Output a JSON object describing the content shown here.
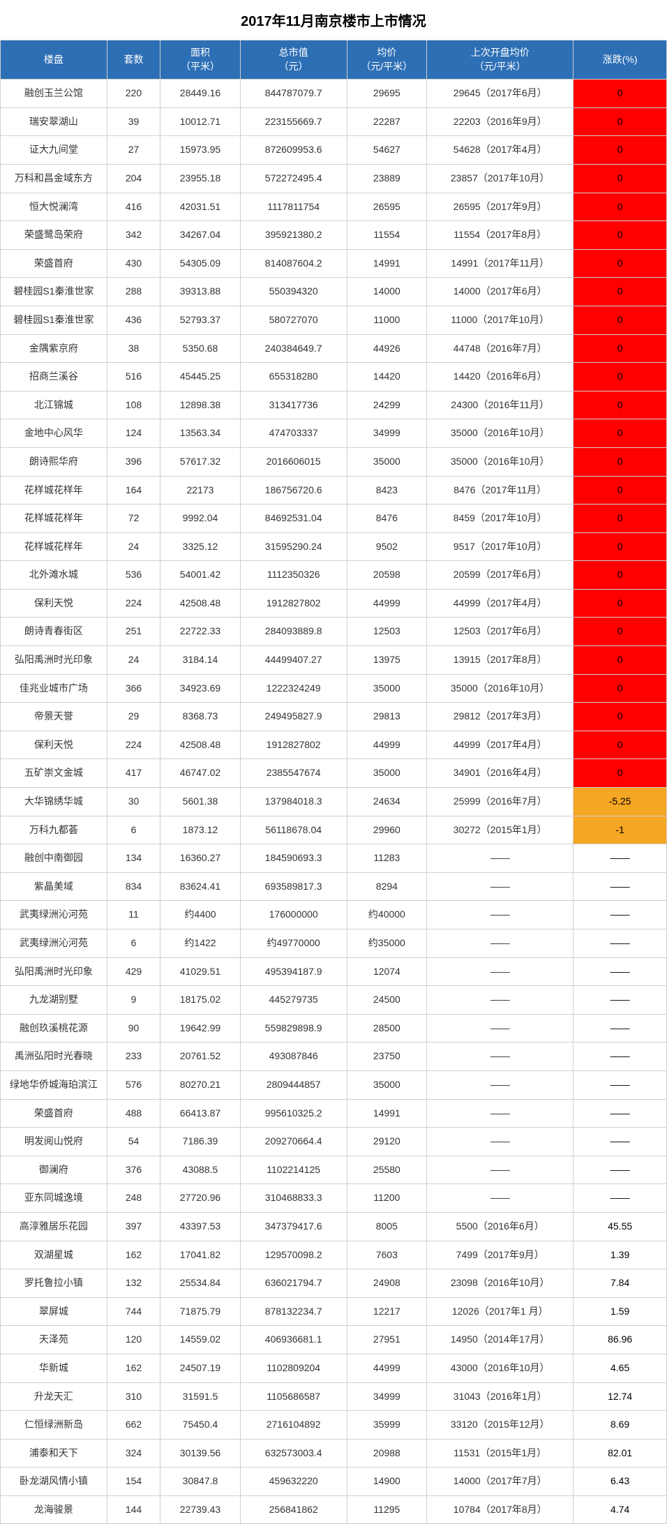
{
  "title": "2017年11月南京楼市上市情况",
  "styling": {
    "header_bg": "#2d6fb5",
    "header_color": "#ffffff",
    "border_color": "#d0d0d0",
    "title_fontsize": 20,
    "body_fontsize": 14,
    "change_colors": {
      "zero": "#ff0000",
      "negative": "#f5a623",
      "positive": "#ffffff",
      "none": "#ffffff"
    }
  },
  "columns": [
    "楼盘",
    "套数",
    "面积\n（平米）",
    "总市值\n（元）",
    "均价\n（元/平米）",
    "上次开盘均价\n（元/平米）",
    "涨跌(%)"
  ],
  "rows": [
    {
      "name": "融创玉兰公馆",
      "count": "220",
      "area": "28449.16",
      "total": "844787079.7",
      "avg": "29695",
      "last": "29645（2017年6月）",
      "change": "0",
      "change_kind": "zero"
    },
    {
      "name": "瑞安翠湖山",
      "count": "39",
      "area": "10012.71",
      "total": "223155669.7",
      "avg": "22287",
      "last": "22203（2016年9月）",
      "change": "0",
      "change_kind": "zero"
    },
    {
      "name": "证大九间堂",
      "count": "27",
      "area": "15973.95",
      "total": "872609953.6",
      "avg": "54627",
      "last": "54628（2017年4月）",
      "change": "0",
      "change_kind": "zero"
    },
    {
      "name": "万科和昌金域东方",
      "count": "204",
      "area": "23955.18",
      "total": "572272495.4",
      "avg": "23889",
      "last": "23857（2017年10月）",
      "change": "0",
      "change_kind": "zero"
    },
    {
      "name": "恒大悦澜湾",
      "count": "416",
      "area": "42031.51",
      "total": "1117811754",
      "avg": "26595",
      "last": "26595（2017年9月）",
      "change": "0",
      "change_kind": "zero"
    },
    {
      "name": "荣盛鹭岛荣府",
      "count": "342",
      "area": "34267.04",
      "total": "395921380.2",
      "avg": "11554",
      "last": "11554（2017年8月）",
      "change": "0",
      "change_kind": "zero"
    },
    {
      "name": "荣盛首府",
      "count": "430",
      "area": "54305.09",
      "total": "814087604.2",
      "avg": "14991",
      "last": "14991（2017年11月）",
      "change": "0",
      "change_kind": "zero"
    },
    {
      "name": "碧桂园S1秦淮世家",
      "count": "288",
      "area": "39313.88",
      "total": "550394320",
      "avg": "14000",
      "last": "14000（2017年6月）",
      "change": "0",
      "change_kind": "zero"
    },
    {
      "name": "碧桂园S1秦淮世家",
      "count": "436",
      "area": "52793.37",
      "total": "580727070",
      "avg": "11000",
      "last": "11000（2017年10月）",
      "change": "0",
      "change_kind": "zero"
    },
    {
      "name": "金隅紫京府",
      "count": "38",
      "area": "5350.68",
      "total": "240384649.7",
      "avg": "44926",
      "last": "44748（2016年7月）",
      "change": "0",
      "change_kind": "zero"
    },
    {
      "name": "招商兰溪谷",
      "count": "516",
      "area": "45445.25",
      "total": "655318280",
      "avg": "14420",
      "last": "14420（2016年6月）",
      "change": "0",
      "change_kind": "zero"
    },
    {
      "name": "北江锦城",
      "count": "108",
      "area": "12898.38",
      "total": "313417736",
      "avg": "24299",
      "last": "24300（2016年11月）",
      "change": "0",
      "change_kind": "zero"
    },
    {
      "name": "金地中心风华",
      "count": "124",
      "area": "13563.34",
      "total": "474703337",
      "avg": "34999",
      "last": "35000（2016年10月）",
      "change": "0",
      "change_kind": "zero"
    },
    {
      "name": "朗诗熙华府",
      "count": "396",
      "area": "57617.32",
      "total": "2016606015",
      "avg": "35000",
      "last": "35000（2016年10月）",
      "change": "0",
      "change_kind": "zero"
    },
    {
      "name": "花样城花样年",
      "count": "164",
      "area": "22173",
      "total": "186756720.6",
      "avg": "8423",
      "last": "8476（2017年11月）",
      "change": "0",
      "change_kind": "zero"
    },
    {
      "name": "花样城花样年",
      "count": "72",
      "area": "9992.04",
      "total": "84692531.04",
      "avg": "8476",
      "last": "8459（2017年10月）",
      "change": "0",
      "change_kind": "zero"
    },
    {
      "name": "花样城花样年",
      "count": "24",
      "area": "3325.12",
      "total": "31595290.24",
      "avg": "9502",
      "last": "9517（2017年10月）",
      "change": "0",
      "change_kind": "zero"
    },
    {
      "name": "北外滩水城",
      "count": "536",
      "area": "54001.42",
      "total": "1112350326",
      "avg": "20598",
      "last": "20599（2017年6月）",
      "change": "0",
      "change_kind": "zero"
    },
    {
      "name": "保利天悦",
      "count": "224",
      "area": "42508.48",
      "total": "1912827802",
      "avg": "44999",
      "last": "44999（2017年4月）",
      "change": "0",
      "change_kind": "zero"
    },
    {
      "name": "朗诗青春街区",
      "count": "251",
      "area": "22722.33",
      "total": "284093889.8",
      "avg": "12503",
      "last": "12503（2017年6月）",
      "change": "0",
      "change_kind": "zero"
    },
    {
      "name": "弘阳禹洲时光印象",
      "count": "24",
      "area": "3184.14",
      "total": "44499407.27",
      "avg": "13975",
      "last": "13915（2017年8月）",
      "change": "0",
      "change_kind": "zero"
    },
    {
      "name": "佳兆业城市广场",
      "count": "366",
      "area": "34923.69",
      "total": "1222324249",
      "avg": "35000",
      "last": "35000（2016年10月）",
      "change": "0",
      "change_kind": "zero"
    },
    {
      "name": "帝景天誉",
      "count": "29",
      "area": "8368.73",
      "total": "249495827.9",
      "avg": "29813",
      "last": "29812（2017年3月）",
      "change": "0",
      "change_kind": "zero"
    },
    {
      "name": "保利天悦",
      "count": "224",
      "area": "42508.48",
      "total": "1912827802",
      "avg": "44999",
      "last": "44999（2017年4月）",
      "change": "0",
      "change_kind": "zero"
    },
    {
      "name": "五矿崇文金城",
      "count": "417",
      "area": "46747.02",
      "total": "2385547674",
      "avg": "35000",
      "last": "34901（2016年4月）",
      "change": "0",
      "change_kind": "zero"
    },
    {
      "name": "大华锦绣华城",
      "count": "30",
      "area": "5601.38",
      "total": "137984018.3",
      "avg": "24634",
      "last": "25999（2016年7月）",
      "change": "-5.25",
      "change_kind": "negative"
    },
    {
      "name": "万科九都荟",
      "count": "6",
      "area": "1873.12",
      "total": "56118678.04",
      "avg": "29960",
      "last": "30272（2015年1月）",
      "change": "-1",
      "change_kind": "negative"
    },
    {
      "name": "融创中南御园",
      "count": "134",
      "area": "16360.27",
      "total": "184590693.3",
      "avg": "11283",
      "last": "——",
      "change": "——",
      "change_kind": "none"
    },
    {
      "name": "紫晶美域",
      "count": "834",
      "area": "83624.41",
      "total": "693589817.3",
      "avg": "8294",
      "last": "——",
      "change": "——",
      "change_kind": "none"
    },
    {
      "name": "武夷绿洲沁河苑",
      "count": "11",
      "area": "约4400",
      "total": "176000000",
      "avg": "约40000",
      "last": "——",
      "change": "——",
      "change_kind": "none"
    },
    {
      "name": "武夷绿洲沁河苑",
      "count": "6",
      "area": "约1422",
      "total": "约49770000",
      "avg": "约35000",
      "last": "——",
      "change": "——",
      "change_kind": "none"
    },
    {
      "name": "弘阳禹洲时光印象",
      "count": "429",
      "area": "41029.51",
      "total": "495394187.9",
      "avg": "12074",
      "last": "——",
      "change": "——",
      "change_kind": "none"
    },
    {
      "name": "九龙湖别墅",
      "count": "9",
      "area": "18175.02",
      "total": "445279735",
      "avg": "24500",
      "last": "——",
      "change": "——",
      "change_kind": "none"
    },
    {
      "name": "融创玖溪桃花源",
      "count": "90",
      "area": "19642.99",
      "total": "559829898.9",
      "avg": "28500",
      "last": "——",
      "change": "——",
      "change_kind": "none"
    },
    {
      "name": "禹洲弘阳时光春晓",
      "count": "233",
      "area": "20761.52",
      "total": "493087846",
      "avg": "23750",
      "last": "——",
      "change": "——",
      "change_kind": "none"
    },
    {
      "name": "绿地华侨城海珀滨江",
      "count": "576",
      "area": "80270.21",
      "total": "2809444857",
      "avg": "35000",
      "last": "——",
      "change": "——",
      "change_kind": "none"
    },
    {
      "name": "荣盛首府",
      "count": "488",
      "area": "66413.87",
      "total": "995610325.2",
      "avg": "14991",
      "last": "——",
      "change": "——",
      "change_kind": "none"
    },
    {
      "name": "明发阅山悦府",
      "count": "54",
      "area": "7186.39",
      "total": "209270664.4",
      "avg": "29120",
      "last": "——",
      "change": "——",
      "change_kind": "none"
    },
    {
      "name": "御澜府",
      "count": "376",
      "area": "43088.5",
      "total": "1102214125",
      "avg": "25580",
      "last": "——",
      "change": "——",
      "change_kind": "none"
    },
    {
      "name": "亚东同城逸境",
      "count": "248",
      "area": "27720.96",
      "total": "310468833.3",
      "avg": "11200",
      "last": "——",
      "change": "——",
      "change_kind": "none"
    },
    {
      "name": "高淳雅居乐花园",
      "count": "397",
      "area": "43397.53",
      "total": "347379417.6",
      "avg": "8005",
      "last": "5500（2016年6月）",
      "change": "45.55",
      "change_kind": "positive"
    },
    {
      "name": "双湖星城",
      "count": "162",
      "area": "17041.82",
      "total": "129570098.2",
      "avg": "7603",
      "last": "7499（2017年9月）",
      "change": "1.39",
      "change_kind": "positive"
    },
    {
      "name": "罗托鲁拉小镇",
      "count": "132",
      "area": "25534.84",
      "total": "636021794.7",
      "avg": "24908",
      "last": "23098（2016年10月）",
      "change": "7.84",
      "change_kind": "positive"
    },
    {
      "name": "翠屏城",
      "count": "744",
      "area": "71875.79",
      "total": "878132234.7",
      "avg": "12217",
      "last": "12026（2017年1 月）",
      "change": "1.59",
      "change_kind": "positive"
    },
    {
      "name": "天泽苑",
      "count": "120",
      "area": "14559.02",
      "total": "406936681.1",
      "avg": "27951",
      "last": "14950（2014年17月）",
      "change": "86.96",
      "change_kind": "positive"
    },
    {
      "name": "华新城",
      "count": "162",
      "area": "24507.19",
      "total": "1102809204",
      "avg": "44999",
      "last": "43000（2016年10月）",
      "change": "4.65",
      "change_kind": "positive"
    },
    {
      "name": "升龙天汇",
      "count": "310",
      "area": "31591.5",
      "total": "1105686587",
      "avg": "34999",
      "last": "31043（2016年1月）",
      "change": "12.74",
      "change_kind": "positive"
    },
    {
      "name": "仁恒绿洲新岛",
      "count": "662",
      "area": "75450.4",
      "total": "2716104892",
      "avg": "35999",
      "last": "33120（2015年12月）",
      "change": "8.69",
      "change_kind": "positive"
    },
    {
      "name": "浦泰和天下",
      "count": "324",
      "area": "30139.56",
      "total": "632573003.4",
      "avg": "20988",
      "last": "11531（2015年1月）",
      "change": "82.01",
      "change_kind": "positive"
    },
    {
      "name": "卧龙湖风情小镇",
      "count": "154",
      "area": "30847.8",
      "total": "459632220",
      "avg": "14900",
      "last": "14000（2017年7月）",
      "change": "6.43",
      "change_kind": "positive"
    },
    {
      "name": "龙海骏景",
      "count": "144",
      "area": "22739.43",
      "total": "256841862",
      "avg": "11295",
      "last": "10784（2017年8月）",
      "change": "4.74",
      "change_kind": "positive"
    }
  ]
}
